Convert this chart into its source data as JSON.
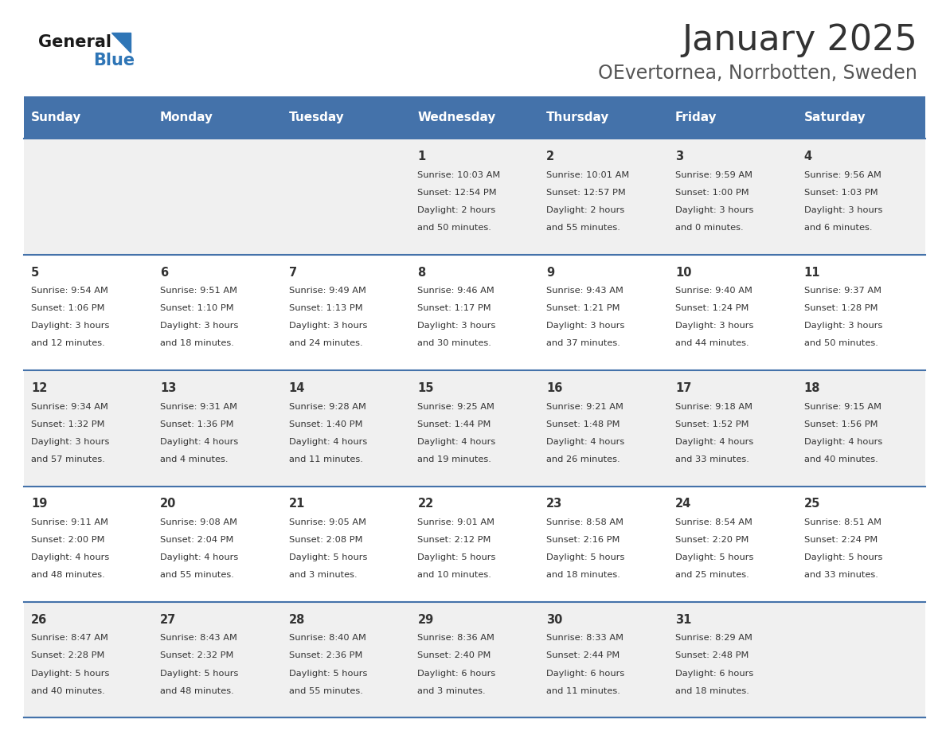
{
  "title": "January 2025",
  "subtitle": "OEvertornea, Norrbotten, Sweden",
  "header_color": "#4472AA",
  "header_text_color": "#FFFFFF",
  "day_names": [
    "Sunday",
    "Monday",
    "Tuesday",
    "Wednesday",
    "Thursday",
    "Friday",
    "Saturday"
  ],
  "bg_color": "#FFFFFF",
  "cell_bg_even": "#F0F0F0",
  "cell_bg_odd": "#FFFFFF",
  "separator_color": "#4472AA",
  "day_num_color": "#333333",
  "info_color": "#333333",
  "title_color": "#333333",
  "subtitle_color": "#555555",
  "calendar_data": [
    [
      null,
      null,
      null,
      {
        "day": 1,
        "sunrise": "10:03 AM",
        "sunset": "12:54 PM",
        "daylight1": "Daylight: 2 hours",
        "daylight2": "and 50 minutes."
      },
      {
        "day": 2,
        "sunrise": "10:01 AM",
        "sunset": "12:57 PM",
        "daylight1": "Daylight: 2 hours",
        "daylight2": "and 55 minutes."
      },
      {
        "day": 3,
        "sunrise": "9:59 AM",
        "sunset": "1:00 PM",
        "daylight1": "Daylight: 3 hours",
        "daylight2": "and 0 minutes."
      },
      {
        "day": 4,
        "sunrise": "9:56 AM",
        "sunset": "1:03 PM",
        "daylight1": "Daylight: 3 hours",
        "daylight2": "and 6 minutes."
      }
    ],
    [
      {
        "day": 5,
        "sunrise": "9:54 AM",
        "sunset": "1:06 PM",
        "daylight1": "Daylight: 3 hours",
        "daylight2": "and 12 minutes."
      },
      {
        "day": 6,
        "sunrise": "9:51 AM",
        "sunset": "1:10 PM",
        "daylight1": "Daylight: 3 hours",
        "daylight2": "and 18 minutes."
      },
      {
        "day": 7,
        "sunrise": "9:49 AM",
        "sunset": "1:13 PM",
        "daylight1": "Daylight: 3 hours",
        "daylight2": "and 24 minutes."
      },
      {
        "day": 8,
        "sunrise": "9:46 AM",
        "sunset": "1:17 PM",
        "daylight1": "Daylight: 3 hours",
        "daylight2": "and 30 minutes."
      },
      {
        "day": 9,
        "sunrise": "9:43 AM",
        "sunset": "1:21 PM",
        "daylight1": "Daylight: 3 hours",
        "daylight2": "and 37 minutes."
      },
      {
        "day": 10,
        "sunrise": "9:40 AM",
        "sunset": "1:24 PM",
        "daylight1": "Daylight: 3 hours",
        "daylight2": "and 44 minutes."
      },
      {
        "day": 11,
        "sunrise": "9:37 AM",
        "sunset": "1:28 PM",
        "daylight1": "Daylight: 3 hours",
        "daylight2": "and 50 minutes."
      }
    ],
    [
      {
        "day": 12,
        "sunrise": "9:34 AM",
        "sunset": "1:32 PM",
        "daylight1": "Daylight: 3 hours",
        "daylight2": "and 57 minutes."
      },
      {
        "day": 13,
        "sunrise": "9:31 AM",
        "sunset": "1:36 PM",
        "daylight1": "Daylight: 4 hours",
        "daylight2": "and 4 minutes."
      },
      {
        "day": 14,
        "sunrise": "9:28 AM",
        "sunset": "1:40 PM",
        "daylight1": "Daylight: 4 hours",
        "daylight2": "and 11 minutes."
      },
      {
        "day": 15,
        "sunrise": "9:25 AM",
        "sunset": "1:44 PM",
        "daylight1": "Daylight: 4 hours",
        "daylight2": "and 19 minutes."
      },
      {
        "day": 16,
        "sunrise": "9:21 AM",
        "sunset": "1:48 PM",
        "daylight1": "Daylight: 4 hours",
        "daylight2": "and 26 minutes."
      },
      {
        "day": 17,
        "sunrise": "9:18 AM",
        "sunset": "1:52 PM",
        "daylight1": "Daylight: 4 hours",
        "daylight2": "and 33 minutes."
      },
      {
        "day": 18,
        "sunrise": "9:15 AM",
        "sunset": "1:56 PM",
        "daylight1": "Daylight: 4 hours",
        "daylight2": "and 40 minutes."
      }
    ],
    [
      {
        "day": 19,
        "sunrise": "9:11 AM",
        "sunset": "2:00 PM",
        "daylight1": "Daylight: 4 hours",
        "daylight2": "and 48 minutes."
      },
      {
        "day": 20,
        "sunrise": "9:08 AM",
        "sunset": "2:04 PM",
        "daylight1": "Daylight: 4 hours",
        "daylight2": "and 55 minutes."
      },
      {
        "day": 21,
        "sunrise": "9:05 AM",
        "sunset": "2:08 PM",
        "daylight1": "Daylight: 5 hours",
        "daylight2": "and 3 minutes."
      },
      {
        "day": 22,
        "sunrise": "9:01 AM",
        "sunset": "2:12 PM",
        "daylight1": "Daylight: 5 hours",
        "daylight2": "and 10 minutes."
      },
      {
        "day": 23,
        "sunrise": "8:58 AM",
        "sunset": "2:16 PM",
        "daylight1": "Daylight: 5 hours",
        "daylight2": "and 18 minutes."
      },
      {
        "day": 24,
        "sunrise": "8:54 AM",
        "sunset": "2:20 PM",
        "daylight1": "Daylight: 5 hours",
        "daylight2": "and 25 minutes."
      },
      {
        "day": 25,
        "sunrise": "8:51 AM",
        "sunset": "2:24 PM",
        "daylight1": "Daylight: 5 hours",
        "daylight2": "and 33 minutes."
      }
    ],
    [
      {
        "day": 26,
        "sunrise": "8:47 AM",
        "sunset": "2:28 PM",
        "daylight1": "Daylight: 5 hours",
        "daylight2": "and 40 minutes."
      },
      {
        "day": 27,
        "sunrise": "8:43 AM",
        "sunset": "2:32 PM",
        "daylight1": "Daylight: 5 hours",
        "daylight2": "and 48 minutes."
      },
      {
        "day": 28,
        "sunrise": "8:40 AM",
        "sunset": "2:36 PM",
        "daylight1": "Daylight: 5 hours",
        "daylight2": "and 55 minutes."
      },
      {
        "day": 29,
        "sunrise": "8:36 AM",
        "sunset": "2:40 PM",
        "daylight1": "Daylight: 6 hours",
        "daylight2": "and 3 minutes."
      },
      {
        "day": 30,
        "sunrise": "8:33 AM",
        "sunset": "2:44 PM",
        "daylight1": "Daylight: 6 hours",
        "daylight2": "and 11 minutes."
      },
      {
        "day": 31,
        "sunrise": "8:29 AM",
        "sunset": "2:48 PM",
        "daylight1": "Daylight: 6 hours",
        "daylight2": "and 18 minutes."
      },
      null
    ]
  ]
}
